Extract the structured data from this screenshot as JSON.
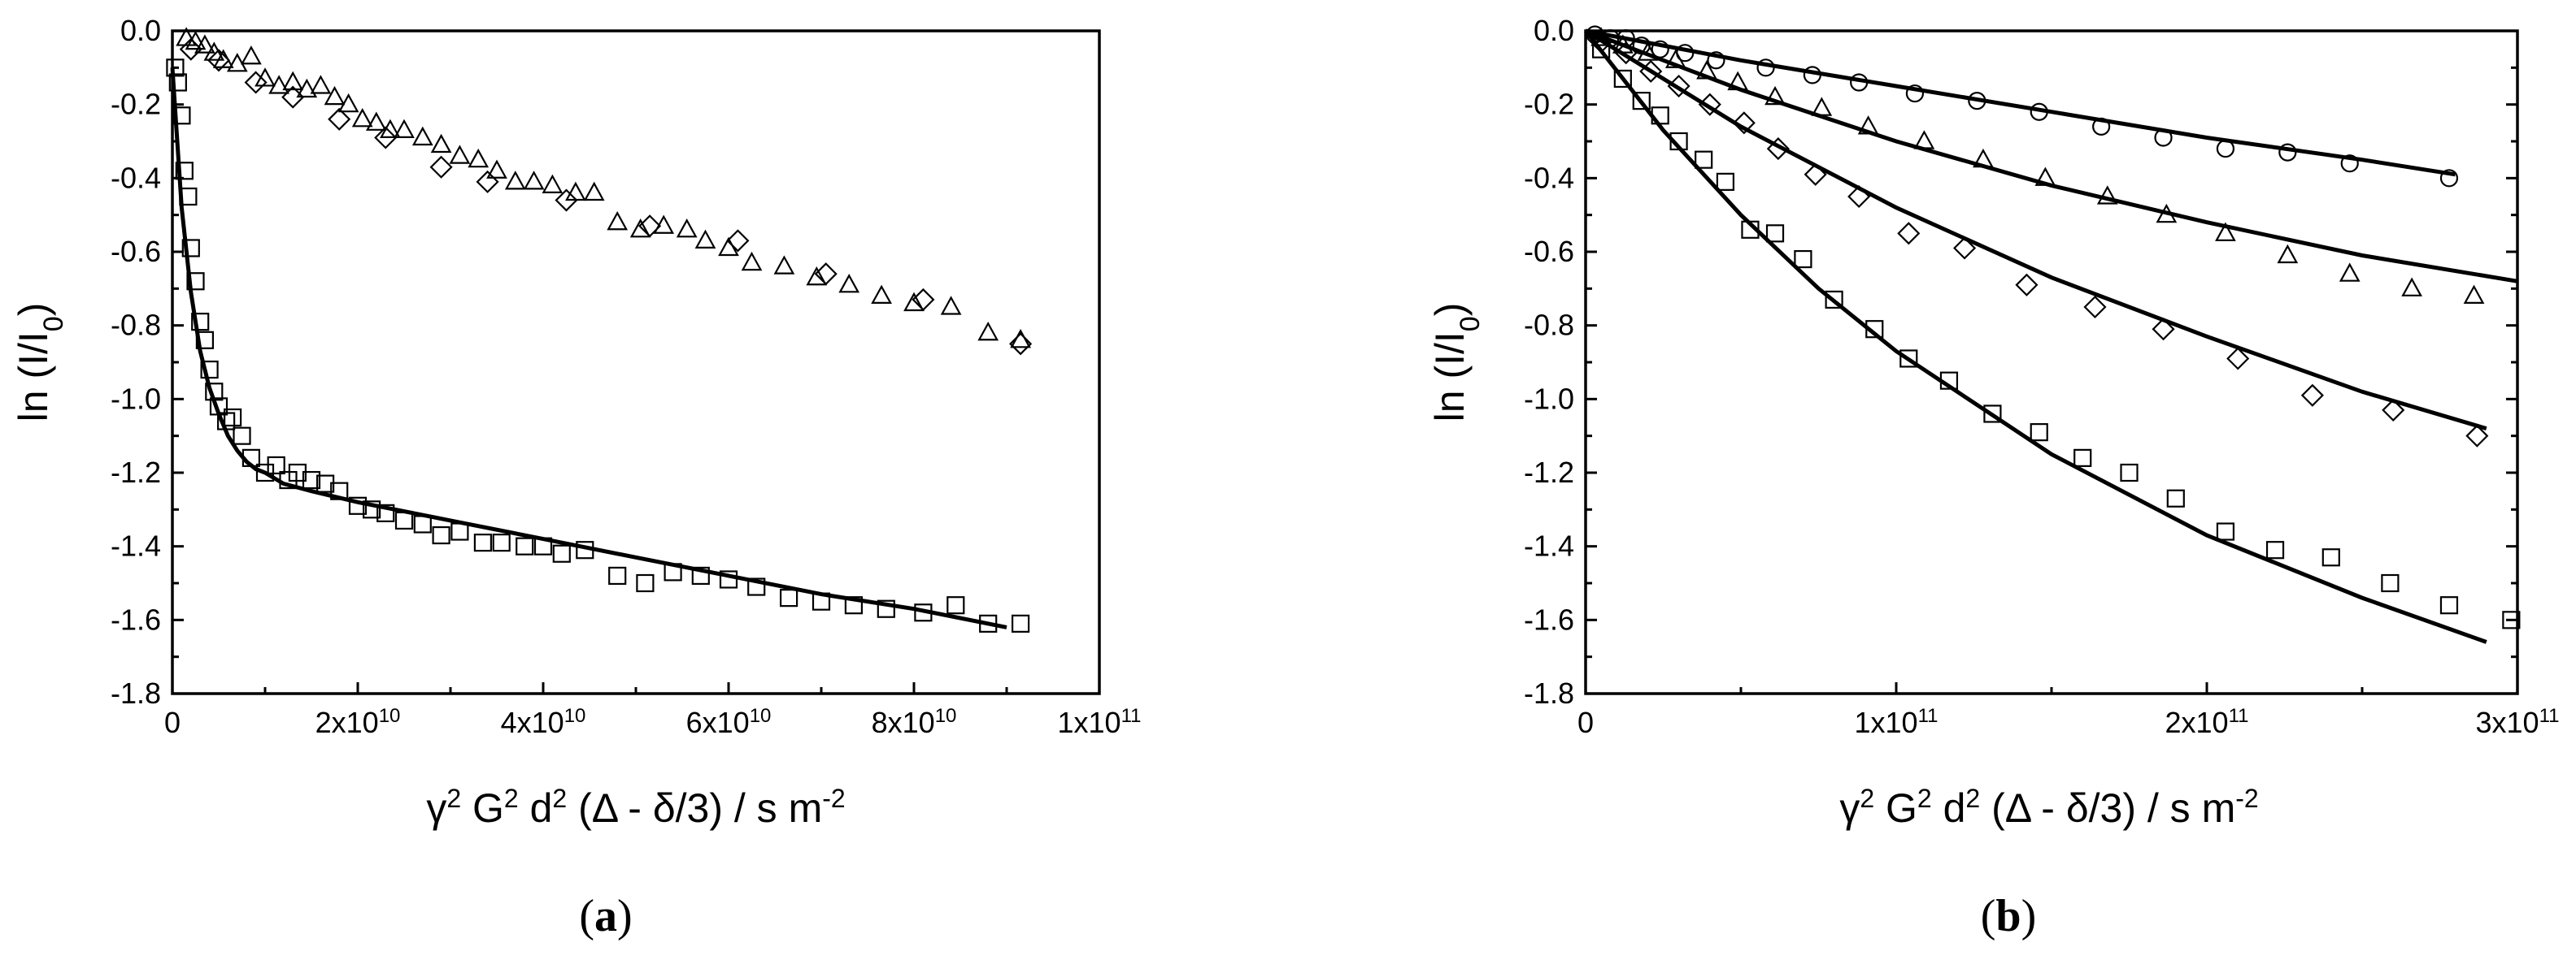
{
  "chart_data": [
    {
      "id": "a",
      "type": "scatter",
      "panel_label": "a",
      "xlabel": {
        "base": "γ",
        "sup1": "2",
        "mid1": " G",
        "sup2": "2",
        "mid2": " d",
        "sup3": "2",
        "tail": " (Δ - δ/3) / s m",
        "sup4": "-2"
      },
      "ylabel": {
        "pre": "ln (I/I",
        "sub": "0",
        "post": ")"
      },
      "xlim": [
        0,
        100000000000
      ],
      "ylim": [
        -1.8,
        0
      ],
      "x_ticks": [
        {
          "value": 0,
          "label": "0"
        },
        {
          "value": 20000000000,
          "label": "2x10",
          "exp": "10"
        },
        {
          "value": 40000000000,
          "label": "4x10",
          "exp": "10"
        },
        {
          "value": 60000000000,
          "label": "6x10",
          "exp": "10"
        },
        {
          "value": 80000000000,
          "label": "8x10",
          "exp": "10"
        },
        {
          "value": 100000000000,
          "label": "1x10",
          "exp": "11"
        }
      ],
      "y_ticks": [
        {
          "value": 0,
          "label": "0.0"
        },
        {
          "value": -0.2,
          "label": "-0.2"
        },
        {
          "value": -0.4,
          "label": "-0.4"
        },
        {
          "value": -0.6,
          "label": "-0.6"
        },
        {
          "value": -0.8,
          "label": "-0.8"
        },
        {
          "value": -1.0,
          "label": "-1.0"
        },
        {
          "value": -1.2,
          "label": "-1.2"
        },
        {
          "value": -1.4,
          "label": "-1.4"
        },
        {
          "value": -1.6,
          "label": "-1.6"
        },
        {
          "value": -1.8,
          "label": "-1.8"
        }
      ],
      "series": [
        {
          "name": "squares",
          "marker": "square",
          "x": [
            300000000,
            600000000,
            1000000000,
            1300000000,
            1700000000,
            2000000000,
            2500000000,
            3000000000,
            3500000000,
            4000000000,
            4500000000,
            5000000000,
            5800000000,
            6500000000,
            7500000000,
            8500000000,
            10000000000,
            11200000000,
            12500000000,
            13500000000,
            15000000000,
            16500000000,
            18000000000,
            20000000000,
            21500000000,
            23000000000,
            25000000000,
            27000000000,
            29000000000,
            31000000000,
            33500000000,
            35500000000,
            38000000000,
            40000000000,
            42000000000,
            44500000000,
            48000000000,
            51000000000,
            54000000000,
            57000000000,
            60000000000,
            63000000000,
            66500000000,
            70000000000,
            73500000000,
            77000000000,
            81000000000,
            84500000000,
            88000000000,
            91500000000
          ],
          "y": [
            -0.1,
            -0.14,
            -0.23,
            -0.38,
            -0.45,
            -0.59,
            -0.68,
            -0.79,
            -0.84,
            -0.92,
            -0.98,
            -1.02,
            -1.06,
            -1.05,
            -1.1,
            -1.16,
            -1.2,
            -1.18,
            -1.22,
            -1.2,
            -1.22,
            -1.23,
            -1.25,
            -1.29,
            -1.3,
            -1.31,
            -1.33,
            -1.34,
            -1.37,
            -1.36,
            -1.39,
            -1.39,
            -1.4,
            -1.4,
            -1.42,
            -1.41,
            -1.48,
            -1.5,
            -1.47,
            -1.48,
            -1.49,
            -1.51,
            -1.54,
            -1.55,
            -1.56,
            -1.57,
            -1.58,
            -1.56,
            -1.61,
            -1.61
          ]
        },
        {
          "name": "triangles",
          "marker": "triangle",
          "x": [
            1500000000,
            2500000000,
            3500000000,
            4500000000,
            5500000000,
            7000000000,
            8500000000,
            10000000000,
            11500000000,
            13000000000,
            14500000000,
            16000000000,
            17500000000,
            19000000000,
            20500000000,
            22000000000,
            23500000000,
            25000000000,
            27000000000,
            29000000000,
            31000000000,
            33000000000,
            35000000000,
            37000000000,
            39000000000,
            41000000000,
            43500000000,
            45500000000,
            48000000000,
            50500000000,
            53000000000,
            55500000000,
            57500000000,
            60000000000,
            62500000000,
            66000000000,
            69500000000,
            73000000000,
            76500000000,
            80000000000,
            84000000000,
            88000000000,
            91500000000
          ],
          "y": [
            -0.02,
            -0.03,
            -0.04,
            -0.06,
            -0.08,
            -0.09,
            -0.07,
            -0.13,
            -0.15,
            -0.14,
            -0.16,
            -0.15,
            -0.18,
            -0.2,
            -0.24,
            -0.25,
            -0.27,
            -0.27,
            -0.29,
            -0.31,
            -0.34,
            -0.35,
            -0.38,
            -0.41,
            -0.41,
            -0.42,
            -0.44,
            -0.44,
            -0.52,
            -0.54,
            -0.53,
            -0.54,
            -0.57,
            -0.59,
            -0.63,
            -0.64,
            -0.67,
            -0.69,
            -0.72,
            -0.74,
            -0.75,
            -0.82,
            -0.84
          ]
        },
        {
          "name": "diamonds",
          "marker": "diamond",
          "x": [
            2000000000,
            5000000000,
            9000000000,
            13000000000,
            18000000000,
            23000000000,
            29000000000,
            34000000000,
            42500000000,
            51500000000,
            61000000000,
            70500000000,
            81000000000,
            91500000000
          ],
          "y": [
            -0.05,
            -0.08,
            -0.14,
            -0.18,
            -0.24,
            -0.29,
            -0.37,
            -0.41,
            -0.46,
            -0.53,
            -0.57,
            -0.66,
            -0.73,
            -0.85
          ]
        }
      ],
      "fits": [
        {
          "name": "fit-a",
          "x": [
            0,
            1000000000,
            2000000000,
            3000000000,
            4000000000,
            5000000000,
            6000000000,
            7000000000,
            8000000000,
            9000000000,
            10000000000,
            12000000000,
            15000000000,
            20000000000,
            30000000000,
            40000000000,
            50000000000,
            60000000000,
            70000000000,
            80000000000,
            90000000000
          ],
          "y": [
            -0.1,
            -0.48,
            -0.71,
            -0.87,
            -0.97,
            -1.04,
            -1.1,
            -1.14,
            -1.17,
            -1.19,
            -1.2,
            -1.23,
            -1.25,
            -1.28,
            -1.33,
            -1.38,
            -1.43,
            -1.48,
            -1.53,
            -1.57,
            -1.62
          ]
        }
      ]
    },
    {
      "id": "b",
      "type": "scatter",
      "panel_label": "b",
      "xlabel": {
        "base": "γ",
        "sup1": "2",
        "mid1": " G",
        "sup2": "2",
        "mid2": " d",
        "sup3": "2",
        "tail": " (Δ - δ/3) / s m",
        "sup4": "-2"
      },
      "ylabel": {
        "pre": "ln (I/I",
        "sub": "0",
        "post": ")"
      },
      "xlim": [
        0,
        300000000000
      ],
      "ylim": [
        -1.8,
        0
      ],
      "x_ticks": [
        {
          "value": 0,
          "label": "0"
        },
        {
          "value": 100000000000,
          "label": "1x10",
          "exp": "11"
        },
        {
          "value": 200000000000,
          "label": "2x10",
          "exp": "11"
        },
        {
          "value": 300000000000,
          "label": "3x10",
          "exp": "11"
        }
      ],
      "y_ticks": [
        {
          "value": 0,
          "label": "0.0"
        },
        {
          "value": -0.2,
          "label": "-0.2"
        },
        {
          "value": -0.4,
          "label": "-0.4"
        },
        {
          "value": -0.6,
          "label": "-0.6"
        },
        {
          "value": -0.8,
          "label": "-0.8"
        },
        {
          "value": -1.0,
          "label": "-1.0"
        },
        {
          "value": -1.2,
          "label": "-1.2"
        },
        {
          "value": -1.4,
          "label": "-1.4"
        },
        {
          "value": -1.6,
          "label": "-1.6"
        },
        {
          "value": -1.8,
          "label": "-1.8"
        }
      ],
      "series": [
        {
          "name": "circles",
          "marker": "circle",
          "x": [
            3000000000,
            8000000000,
            13000000000,
            18000000000,
            24000000000,
            32000000000,
            42000000000,
            58000000000,
            73000000000,
            88000000000,
            106000000000,
            126000000000,
            146000000000,
            166000000000,
            186000000000,
            206000000000,
            226000000000,
            246000000000,
            278000000000
          ],
          "y": [
            -0.01,
            -0.02,
            -0.02,
            -0.04,
            -0.05,
            -0.06,
            -0.08,
            -0.1,
            -0.12,
            -0.14,
            -0.17,
            -0.19,
            -0.22,
            -0.26,
            -0.29,
            -0.32,
            -0.33,
            -0.36,
            -0.4
          ]
        },
        {
          "name": "triangles",
          "marker": "triangle",
          "x": [
            5000000000,
            12000000000,
            20000000000,
            29000000000,
            39000000000,
            49000000000,
            61000000000,
            76000000000,
            91000000000,
            109000000000,
            128000000000,
            148000000000,
            168000000000,
            187000000000,
            206000000000,
            226000000000,
            246000000000,
            266000000000,
            286000000000
          ],
          "y": [
            -0.02,
            -0.04,
            -0.06,
            -0.08,
            -0.11,
            -0.14,
            -0.18,
            -0.21,
            -0.26,
            -0.3,
            -0.35,
            -0.4,
            -0.45,
            -0.5,
            -0.55,
            -0.61,
            -0.66,
            -0.7,
            -0.72
          ]
        },
        {
          "name": "diamonds",
          "marker": "diamond",
          "x": [
            5000000000,
            13000000000,
            21000000000,
            30000000000,
            40000000000,
            51000000000,
            62000000000,
            74000000000,
            88000000000,
            104000000000,
            122000000000,
            142000000000,
            164000000000,
            186000000000,
            210000000000,
            234000000000,
            260000000000,
            287000000000
          ],
          "y": [
            -0.03,
            -0.06,
            -0.11,
            -0.15,
            -0.2,
            -0.25,
            -0.32,
            -0.39,
            -0.45,
            -0.55,
            -0.59,
            -0.69,
            -0.75,
            -0.81,
            -0.89,
            -0.99,
            -1.03,
            -1.1
          ]
        },
        {
          "name": "squares",
          "marker": "square",
          "x": [
            5000000000,
            12000000000,
            18000000000,
            24000000000,
            30000000000,
            38000000000,
            45000000000,
            53000000000,
            61000000000,
            70000000000,
            80000000000,
            93000000000,
            104000000000,
            117000000000,
            131000000000,
            146000000000,
            160000000000,
            175000000000,
            190000000000,
            206000000000,
            222000000000,
            240000000000,
            259000000000,
            278000000000,
            298000000000
          ],
          "y": [
            -0.05,
            -0.13,
            -0.19,
            -0.23,
            -0.3,
            -0.35,
            -0.41,
            -0.54,
            -0.55,
            -0.62,
            -0.73,
            -0.81,
            -0.89,
            -0.95,
            -1.04,
            -1.09,
            -1.16,
            -1.2,
            -1.27,
            -1.36,
            -1.41,
            -1.43,
            -1.5,
            -1.56,
            -1.6
          ]
        }
      ],
      "fits": [
        {
          "name": "fit-circles",
          "x": [
            0,
            50000000000,
            100000000000,
            150000000000,
            200000000000,
            250000000000,
            280000000000
          ],
          "y": [
            0,
            -0.08,
            -0.15,
            -0.22,
            -0.29,
            -0.35,
            -0.39
          ]
        },
        {
          "name": "fit-triangles",
          "x": [
            0,
            50000000000,
            100000000000,
            150000000000,
            200000000000,
            250000000000,
            300000000000
          ],
          "y": [
            0,
            -0.16,
            -0.3,
            -0.42,
            -0.52,
            -0.61,
            -0.68
          ]
        },
        {
          "name": "fit-diamonds",
          "x": [
            0,
            50000000000,
            100000000000,
            150000000000,
            200000000000,
            250000000000,
            290000000000
          ],
          "y": [
            0,
            -0.26,
            -0.48,
            -0.67,
            -0.83,
            -0.98,
            -1.08
          ]
        },
        {
          "name": "fit-squares",
          "x": [
            0,
            25000000000,
            50000000000,
            75000000000,
            100000000000,
            150000000000,
            200000000000,
            250000000000,
            290000000000
          ],
          "y": [
            0,
            -0.27,
            -0.5,
            -0.7,
            -0.87,
            -1.15,
            -1.37,
            -1.54,
            -1.66
          ]
        }
      ]
    }
  ]
}
